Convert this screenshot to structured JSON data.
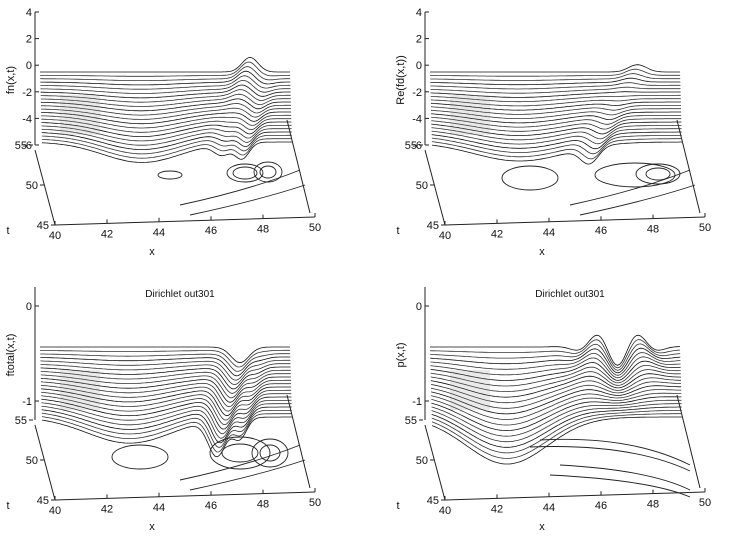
{
  "chart_data": [
    {
      "type": "surface-3d-waterfall",
      "title": "",
      "zlabel": "fn(x,t)",
      "xlabel": "x",
      "ylabel": "t",
      "z_ticks": [
        "4",
        "2",
        "0",
        "-2",
        "-4",
        "-6"
      ],
      "x_ticks": [
        "40",
        "42",
        "44",
        "46",
        "48",
        "50"
      ],
      "t_ticks": [
        "55",
        "50",
        "45"
      ],
      "xlim": [
        40,
        50
      ],
      "tlim": [
        45,
        55
      ],
      "zlim": [
        -6,
        4
      ],
      "variant": "fn"
    },
    {
      "type": "surface-3d-waterfall",
      "title": "",
      "zlabel": "Re(fd(x,t))",
      "xlabel": "x",
      "ylabel": "t",
      "z_ticks": [
        "4",
        "2",
        "0",
        "-2",
        "-4",
        "-6"
      ],
      "x_ticks": [
        "40",
        "42",
        "44",
        "46",
        "48",
        "50"
      ],
      "t_ticks": [
        "55",
        "50",
        "45"
      ],
      "xlim": [
        40,
        50
      ],
      "tlim": [
        45,
        55
      ],
      "zlim": [
        -6,
        4
      ],
      "variant": "fd"
    },
    {
      "type": "surface-3d-waterfall",
      "title": "Dirichlet out301",
      "zlabel": "ftotal(x,t)",
      "xlabel": "x",
      "ylabel": "t",
      "z_ticks": [
        "0",
        "-1"
      ],
      "x_ticks": [
        "40",
        "42",
        "44",
        "46",
        "48",
        "50"
      ],
      "t_ticks": [
        "55",
        "50",
        "45"
      ],
      "xlim": [
        40,
        50
      ],
      "tlim": [
        45,
        55
      ],
      "zlim": [
        -1.2,
        0.2
      ],
      "variant": "ftotal"
    },
    {
      "type": "surface-3d-waterfall",
      "title": "Dirichlet out301",
      "zlabel": "p(x,t)",
      "xlabel": "x",
      "ylabel": "t",
      "z_ticks": [
        "0",
        "-1"
      ],
      "x_ticks": [
        "40",
        "42",
        "44",
        "46",
        "48",
        "50"
      ],
      "t_ticks": [
        "55",
        "50",
        "45"
      ],
      "xlim": [
        40,
        50
      ],
      "tlim": [
        45,
        55
      ],
      "zlim": [
        -1.2,
        0.2
      ],
      "variant": "p"
    }
  ]
}
